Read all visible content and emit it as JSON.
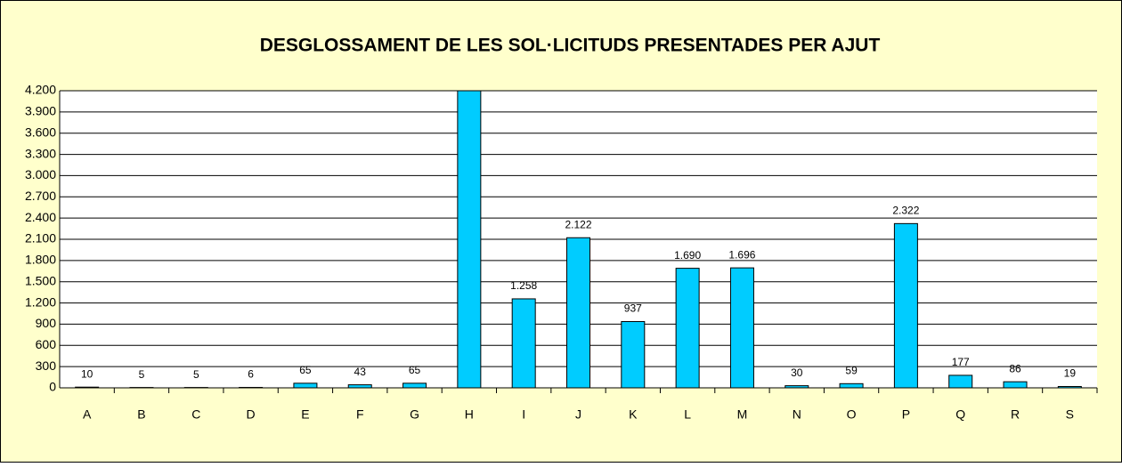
{
  "chart_data": {
    "type": "bar",
    "title": "DESGLOSSAMENT DE LES SOL·LICITUDS PRESENTADES PER AJUT",
    "categories": [
      "A",
      "B",
      "C",
      "D",
      "E",
      "F",
      "G",
      "H",
      "I",
      "J",
      "K",
      "L",
      "M",
      "N",
      "O",
      "P",
      "Q",
      "R",
      "S"
    ],
    "values": [
      10,
      5,
      5,
      6,
      65,
      43,
      65,
      4200,
      1258,
      2122,
      937,
      1690,
      1696,
      30,
      59,
      2322,
      177,
      86,
      19
    ],
    "value_labels": [
      "10",
      "5",
      "5",
      "6",
      "65",
      "43",
      "65",
      null,
      "1.258",
      "2.122",
      "937",
      "1.690",
      "1.696",
      "30",
      "59",
      "2.322",
      "177",
      "86",
      "19"
    ],
    "color": "#00ccff",
    "ylim": [
      0,
      4200
    ],
    "yticks": [
      0,
      300,
      600,
      900,
      {
        "value": 1200,
        "label": "1.200"
      },
      {
        "value": 1500,
        "label": "1.500"
      },
      {
        "value": 1800,
        "label": "1.800"
      },
      {
        "value": 2100,
        "label": "2.100"
      },
      {
        "value": 2400,
        "label": "2.400"
      },
      {
        "value": 2700,
        "label": "2.700"
      },
      {
        "value": 3000,
        "label": "3.000"
      },
      {
        "value": 3300,
        "label": "3.300"
      },
      {
        "value": 3600,
        "label": "3.600"
      },
      {
        "value": 3900,
        "label": "3.900"
      },
      {
        "value": 4200,
        "label": "4.200"
      }
    ],
    "grid": true
  }
}
